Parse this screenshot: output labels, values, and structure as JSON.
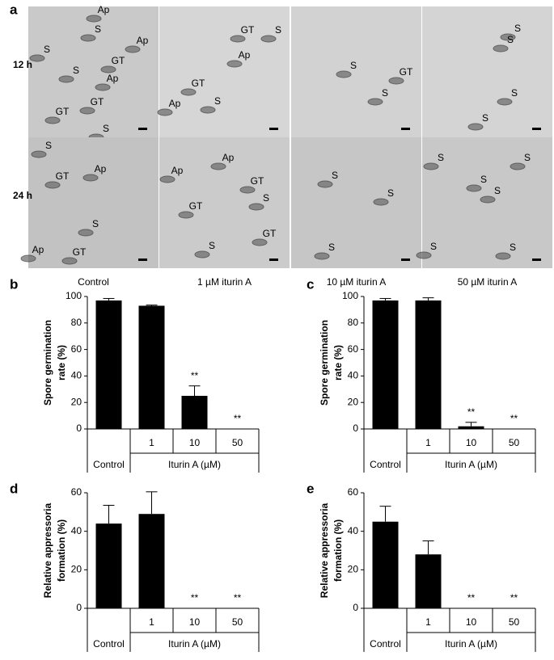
{
  "panel_a": {
    "letter": "a",
    "row_labels": [
      "12 h",
      "24 h"
    ],
    "column_labels": [
      "Control",
      "1 µM iturin A",
      "10 µM iturin A",
      "50 µM iturin A"
    ],
    "panels": [
      {
        "labels": [
          "S",
          "Ap",
          "S",
          "Ap",
          "GT",
          "S",
          "Ap",
          "GT",
          "GT",
          "S"
        ]
      },
      {
        "labels": [
          "GT",
          "S",
          "Ap",
          "GT",
          "Ap",
          "S"
        ]
      },
      {
        "labels": [
          "S",
          "GT",
          "S"
        ]
      },
      {
        "labels": [
          "S",
          "S",
          "S",
          "S"
        ]
      },
      {
        "labels": [
          "S",
          "Ap",
          "GT",
          "S",
          "Ap",
          "GT"
        ]
      },
      {
        "labels": [
          "Ap",
          "Ap",
          "GT",
          "GT",
          "S",
          "GT",
          "S"
        ]
      },
      {
        "labels": [
          "S",
          "S",
          "S"
        ]
      },
      {
        "labels": [
          "S",
          "S",
          "S",
          "S",
          "S",
          "S"
        ]
      }
    ]
  },
  "chart_data": [
    {
      "type": "bar",
      "letter": "b",
      "ylabel": [
        "Spore germination",
        "rate (%)"
      ],
      "categories": [
        "Control",
        "1",
        "10",
        "50"
      ],
      "group_label": "Iturin A (µM)",
      "values": [
        97,
        93,
        25,
        0
      ],
      "errors": [
        1.5,
        0.5,
        7.5,
        0
      ],
      "annotations": [
        null,
        null,
        "**",
        "**"
      ],
      "color": "#000000",
      "ylim": [
        0,
        100
      ],
      "yticks": [
        0,
        20,
        40,
        60,
        80,
        100
      ]
    },
    {
      "type": "bar",
      "letter": "c",
      "ylabel": [
        "Spore germination",
        "rate (%)"
      ],
      "categories": [
        "Control",
        "1",
        "10",
        "50"
      ],
      "group_label": "Iturin A (µM)",
      "values": [
        97,
        97,
        2,
        0
      ],
      "errors": [
        1.5,
        2,
        3,
        0
      ],
      "annotations": [
        null,
        null,
        "**",
        "**"
      ],
      "color": "#000000",
      "ylim": [
        0,
        100
      ],
      "yticks": [
        0,
        20,
        40,
        60,
        80,
        100
      ]
    },
    {
      "type": "bar",
      "letter": "d",
      "ylabel": [
        "Relative appressoria",
        "formation (%)"
      ],
      "categories": [
        "Control",
        "1",
        "10",
        "50"
      ],
      "group_label": "Iturin A (µM)",
      "values": [
        44,
        49,
        0,
        0
      ],
      "errors": [
        9.5,
        11.5,
        0,
        0
      ],
      "annotations": [
        null,
        null,
        "**",
        "**"
      ],
      "color": "#000000",
      "ylim": [
        0,
        60
      ],
      "yticks": [
        0,
        20,
        40,
        60
      ]
    },
    {
      "type": "bar",
      "letter": "e",
      "ylabel": [
        "Relative appressoria",
        "formation (%)"
      ],
      "categories": [
        "Control",
        "1",
        "10",
        "50"
      ],
      "group_label": "Iturin A (µM)",
      "values": [
        45,
        28,
        0,
        0
      ],
      "errors": [
        8,
        7,
        0,
        0
      ],
      "annotations": [
        null,
        null,
        "**",
        "**"
      ],
      "color": "#000000",
      "ylim": [
        0,
        60
      ],
      "yticks": [
        0,
        20,
        40,
        60
      ]
    }
  ]
}
